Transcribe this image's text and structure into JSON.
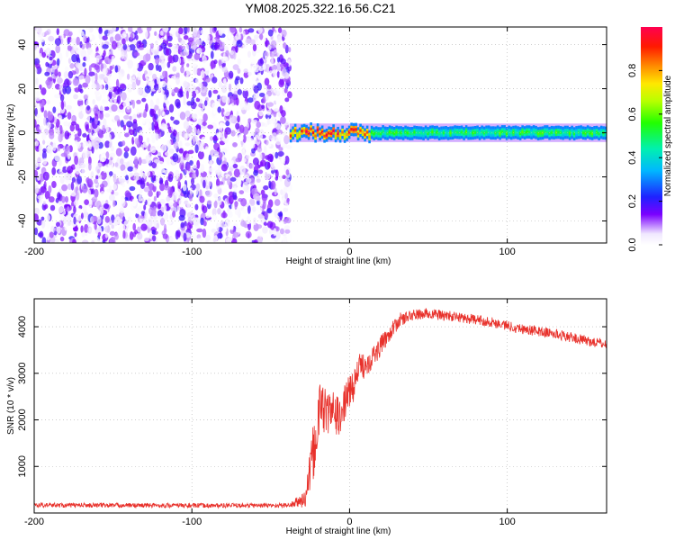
{
  "figure_title": "YM08.2025.322.16.56.C21",
  "chart_data": [
    {
      "type": "heatmap",
      "title": "",
      "xlabel": "Height of straight line (km)",
      "ylabel": "Frequency (Hz)",
      "xlim": [
        -200,
        163
      ],
      "ylim": [
        -50,
        48
      ],
      "xticks": [
        -200,
        -100,
        0,
        100
      ],
      "yticks": [
        -40,
        -20,
        0,
        20,
        40
      ],
      "grid": true,
      "colorbar": {
        "label": "Normalized spectral amplitude",
        "range": [
          0,
          1
        ],
        "ticks": [
          0.0,
          0.2,
          0.4,
          0.6,
          0.8
        ],
        "tick_labels": [
          "0.0",
          "0.2",
          "0.4",
          "0.6",
          "0.8"
        ],
        "colormap": "rainbow"
      },
      "regions": [
        {
          "x_range": [
            -200,
            -38
          ],
          "description_value": "broadband noise",
          "amplitude_range": [
            0.0,
            0.2
          ]
        },
        {
          "x_range": [
            -38,
            163
          ],
          "center_freq_hz": 0,
          "half_width_hz": 3,
          "peak_amplitude_range": [
            0.4,
            1.0
          ]
        }
      ]
    },
    {
      "type": "line",
      "title": "",
      "xlabel": "Height of straight line (km)",
      "ylabel": "SNR (10 * v/v)",
      "xlim": [
        -200,
        163
      ],
      "ylim": [
        0,
        4600
      ],
      "xticks": [
        -200,
        -100,
        0,
        100
      ],
      "yticks": [
        1000,
        2000,
        3000,
        4000
      ],
      "grid": true,
      "series": [
        {
          "color": "#e8312b",
          "x": [
            -200,
            -150,
            -100,
            -60,
            -38,
            -28,
            -22,
            -18,
            -14,
            -10,
            -6,
            -2,
            2,
            6,
            10,
            16,
            24,
            32,
            40,
            50,
            70,
            90,
            110,
            130,
            150,
            163
          ],
          "y": [
            170,
            165,
            160,
            160,
            165,
            300,
            1500,
            2400,
            2100,
            2200,
            2000,
            2500,
            2700,
            3100,
            3200,
            3400,
            3800,
            4150,
            4250,
            4280,
            4200,
            4100,
            3950,
            3850,
            3700,
            3620
          ],
          "noise": [
            50,
            50,
            50,
            50,
            50,
            200,
            700,
            600,
            500,
            450,
            400,
            380,
            360,
            320,
            280,
            250,
            180,
            150,
            120,
            120,
            110,
            110,
            110,
            110,
            110,
            110
          ]
        }
      ]
    }
  ]
}
